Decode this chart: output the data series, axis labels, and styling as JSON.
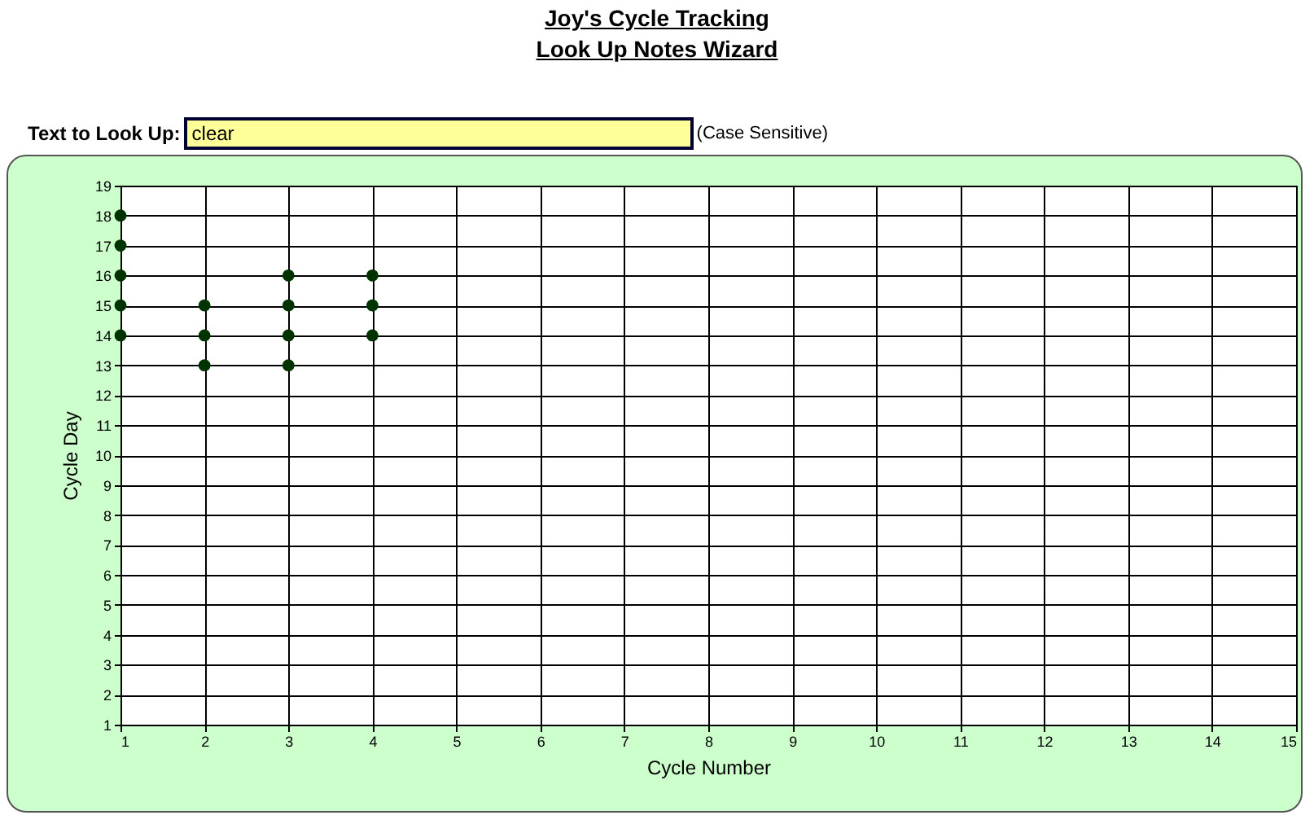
{
  "chart_data": {
    "type": "scatter",
    "title": "Joy's Cycle Tracking",
    "subtitle": "Look Up Notes Wizard",
    "xlabel": "Cycle Number",
    "ylabel": "Cycle Day",
    "annotations": [
      "Text to Look Up:",
      "clear",
      "(Case Sensitive)"
    ],
    "x": [
      1,
      1,
      1,
      1,
      1,
      2,
      2,
      2,
      3,
      3,
      3,
      3,
      4,
      4,
      4
    ],
    "series": [
      {
        "color": "#003300",
        "values": [
          14,
          15,
          16,
          17,
          18,
          13,
          14,
          15,
          13,
          14,
          15,
          16,
          14,
          15,
          16
        ]
      }
    ],
    "xlim": [
      1,
      15
    ],
    "xticks": [
      1,
      2,
      3,
      4,
      5,
      6,
      7,
      8,
      9,
      10,
      11,
      12,
      13,
      14,
      15
    ],
    "ylim": [
      1,
      19
    ],
    "yticks": [
      1,
      2,
      3,
      4,
      5,
      6,
      7,
      8,
      9,
      10,
      11,
      12,
      13,
      14,
      15,
      16,
      17,
      18,
      19
    ],
    "grid": true,
    "legend": false,
    "marker": "circle"
  }
}
